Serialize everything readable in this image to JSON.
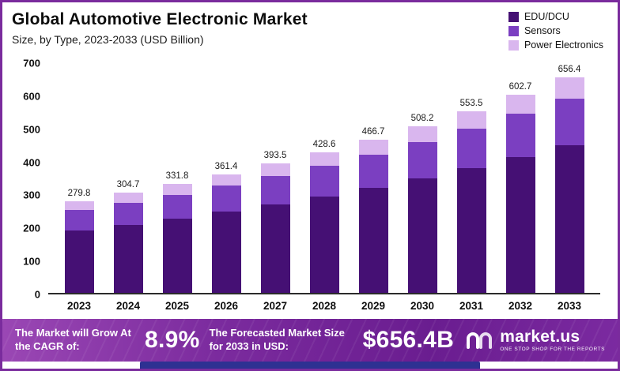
{
  "title": "Global Automotive Electronic Market",
  "subtitle": "Size, by Type, 2023-2033 (USD Billion)",
  "chart_data": {
    "type": "bar",
    "stacked": true,
    "title": "Global Automotive Electronic Market Size, by Type, 2023-2033 (USD Billion)",
    "categories": [
      "2023",
      "2024",
      "2025",
      "2026",
      "2027",
      "2028",
      "2029",
      "2030",
      "2031",
      "2032",
      "2033"
    ],
    "totals": [
      279.8,
      304.7,
      331.8,
      361.4,
      393.5,
      428.6,
      466.7,
      508.2,
      553.5,
      602.7,
      656.4
    ],
    "series": [
      {
        "name": "EDU/DCU",
        "color": "#451074",
        "values": [
          190.0,
          208.0,
          227.0,
          248.0,
          270.0,
          294.0,
          320.0,
          349.0,
          380.0,
          414.0,
          450.0
        ]
      },
      {
        "name": "Sensors",
        "color": "#7b3fc1",
        "values": [
          62.0,
          67.0,
          72.0,
          79.0,
          86.0,
          93.0,
          101.0,
          111.0,
          120.0,
          131.0,
          143.0
        ]
      },
      {
        "name": "Power Electronics",
        "color": "#d9b6ee",
        "values": [
          27.8,
          29.7,
          32.8,
          34.4,
          37.5,
          41.6,
          45.7,
          48.2,
          53.5,
          57.7,
          63.4
        ]
      }
    ],
    "xlabel": "",
    "ylabel": "",
    "ylim": [
      0,
      700
    ],
    "ytick_step": 100,
    "grid": false,
    "legend_position": "top-right"
  },
  "banner": {
    "cagr_label": "The Market will Grow At the CAGR of:",
    "cagr_value": "8.9%",
    "forecast_label": "The Forecasted Market Size for 2033 in USD:",
    "forecast_value": "$656.4B",
    "brand": "market.us",
    "brand_tagline": "One Stop Shop For The Reports"
  }
}
